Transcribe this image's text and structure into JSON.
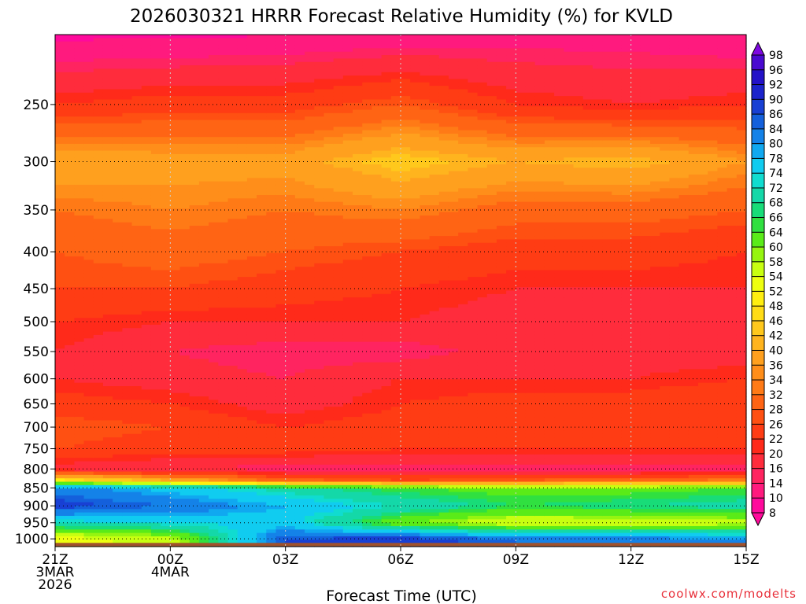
{
  "chart_data": {
    "type": "heatmap",
    "title": "2026030321 HRRR Forecast Relative Humidity (%) for KVLD",
    "xlabel": "Forecast Time (UTC)",
    "ylabel": "",
    "source": "coolwx.com/modelts",
    "x_ticks": [
      {
        "hour": 0,
        "lines": [
          "21Z",
          "3MAR",
          "2026"
        ]
      },
      {
        "hour": 3,
        "lines": [
          "00Z",
          "4MAR"
        ]
      },
      {
        "hour": 6,
        "lines": [
          "03Z"
        ]
      },
      {
        "hour": 9,
        "lines": [
          "06Z"
        ]
      },
      {
        "hour": 12,
        "lines": [
          "09Z"
        ]
      },
      {
        "hour": 15,
        "lines": [
          "12Z"
        ]
      },
      {
        "hour": 18,
        "lines": [
          "15Z"
        ]
      }
    ],
    "xlim": [
      0,
      18
    ],
    "y_ticks": [
      250,
      300,
      350,
      400,
      450,
      500,
      550,
      600,
      650,
      700,
      750,
      800,
      850,
      900,
      950,
      1000
    ],
    "ylim_hPa": [
      200,
      1025
    ],
    "surface_pressure_hPa": 1013,
    "colorbar": {
      "labels": [
        8,
        10,
        14,
        16,
        20,
        22,
        26,
        28,
        32,
        34,
        36,
        40,
        42,
        46,
        48,
        52,
        54,
        58,
        60,
        64,
        66,
        68,
        72,
        74,
        78,
        80,
        84,
        86,
        90,
        92,
        96,
        98
      ],
      "colors": [
        "#ff0a9c",
        "#ff1a7e",
        "#ff2460",
        "#ff2c3c",
        "#ff2a1a",
        "#ff3c14",
        "#ff5012",
        "#ff6414",
        "#ff7a16",
        "#ff8e1a",
        "#ffa01e",
        "#ffb41e",
        "#ffc81c",
        "#ffdc16",
        "#ffee10",
        "#eeff10",
        "#c8ff10",
        "#96f510",
        "#5aeb18",
        "#30e040",
        "#18dc78",
        "#14d8a8",
        "#10dcd0",
        "#10ccf0",
        "#10a8f0",
        "#1482e8",
        "#1460dc",
        "#1840d4",
        "#1c24cc",
        "#2412c8",
        "#4a0ad0",
        "#7e08e0"
      ]
    },
    "profiles": {
      "hours": [
        0,
        3,
        6,
        9,
        12,
        15,
        18
      ],
      "pressure_hPa": [
        200,
        250,
        300,
        350,
        400,
        450,
        500,
        550,
        600,
        650,
        700,
        750,
        800,
        830,
        850,
        900,
        950,
        1000
      ],
      "rh_percent": [
        [
          9,
          22,
          40,
          32,
          28,
          26,
          22,
          20,
          20,
          24,
          28,
          26,
          18,
          50,
          82,
          88,
          72,
          52
        ],
        [
          9,
          24,
          38,
          34,
          30,
          26,
          20,
          16,
          18,
          22,
          26,
          24,
          16,
          40,
          76,
          84,
          74,
          56
        ],
        [
          10,
          24,
          38,
          32,
          28,
          24,
          20,
          14,
          16,
          18,
          22,
          24,
          14,
          30,
          70,
          78,
          76,
          86
        ],
        [
          11,
          28,
          44,
          34,
          26,
          22,
          20,
          14,
          20,
          22,
          24,
          22,
          14,
          26,
          64,
          72,
          60,
          88
        ],
        [
          12,
          22,
          40,
          30,
          24,
          20,
          18,
          18,
          20,
          24,
          26,
          22,
          14,
          28,
          62,
          66,
          54,
          84
        ],
        [
          12,
          20,
          42,
          30,
          24,
          20,
          16,
          18,
          20,
          24,
          24,
          22,
          14,
          30,
          62,
          68,
          54,
          82
        ],
        [
          10,
          22,
          36,
          28,
          22,
          20,
          16,
          18,
          22,
          26,
          26,
          22,
          14,
          34,
          64,
          70,
          56,
          80
        ]
      ]
    }
  }
}
